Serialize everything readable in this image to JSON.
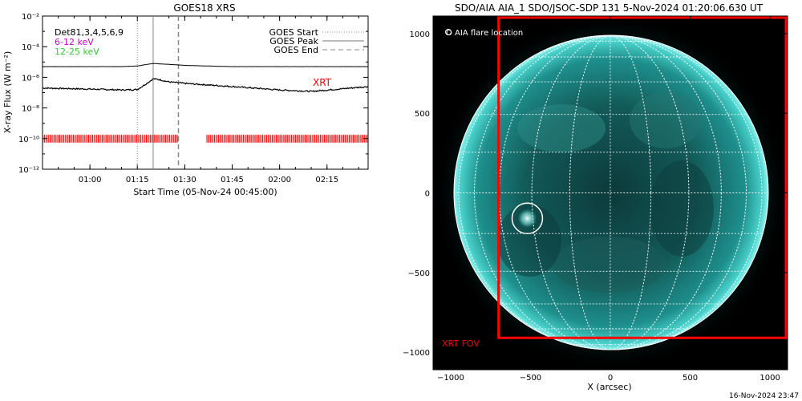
{
  "chart_data": [
    {
      "type": "line",
      "title": "GOES18 XRS",
      "xlabel": "Start Time (05-Nov-24 00:45:00)",
      "ylabel": "X-ray Flux (W m⁻²)",
      "y_scale": "log",
      "x_tick_labels": [
        "01:00",
        "01:15",
        "01:30",
        "01:45",
        "02:00",
        "02:15"
      ],
      "y_tick_labels": [
        "10⁻²",
        "10⁻⁴",
        "10⁻⁶",
        "10⁻⁸",
        "10⁻¹⁰",
        "10⁻¹²"
      ],
      "xlim": [
        "00:45",
        "02:28"
      ],
      "ylim": [
        1e-12,
        0.01
      ],
      "legend_placement": "top-right",
      "legend": [
        "GOES Start",
        "GOES Peak",
        "GOES End"
      ],
      "channel_labels": [
        {
          "text": "Det81,3,4,5,6,9",
          "color": "#000000"
        },
        {
          "text": "6-12 keV",
          "color": "#cc00cc"
        },
        {
          "text": "12-25 keV",
          "color": "#33cc33"
        }
      ],
      "annotation": "XRT",
      "annotation_color": "#ff0000",
      "markers": {
        "goes_start": "01:15",
        "goes_peak": "01:20",
        "goes_end": "01:28"
      },
      "series": [
        {
          "x": [
            "00:45",
            "01:00",
            "01:10",
            "01:15",
            "01:18",
            "01:20",
            "01:25",
            "01:30",
            "01:45",
            "02:00",
            "02:10",
            "02:28"
          ],
          "values": [
            5e-06,
            5e-06,
            5e-06,
            5.5e-06,
            7e-06,
            8e-06,
            7e-06,
            6e-06,
            5e-06,
            5e-06,
            5e-06,
            5e-06
          ]
        },
        {
          "x": [
            "00:45",
            "01:00",
            "01:10",
            "01:15",
            "01:18",
            "01:20",
            "01:22",
            "01:25",
            "01:30",
            "01:45",
            "02:00",
            "02:10",
            "02:20",
            "02:28"
          ],
          "values": [
            2e-07,
            1.7e-07,
            1.5e-07,
            1.6e-07,
            4e-07,
            8e-07,
            7e-07,
            5e-07,
            4e-07,
            2.5e-07,
            1.5e-07,
            1.2e-07,
            1.8e-07,
            2.5e-07
          ]
        }
      ],
      "xrt_coverage": [
        [
          "00:45",
          "01:28"
        ],
        [
          "01:37",
          "02:28"
        ]
      ],
      "xrt_level": 1e-10
    },
    {
      "type": "image",
      "title": "SDO/AIA AIA_1 SDO/JSOC-SDP 131  5-Nov-2024 01:20:06.630 UT",
      "xlabel": "X (arcsec)",
      "x_tick_labels": [
        "−1000",
        "−500",
        "0",
        "500",
        "1000"
      ],
      "y_tick_labels": [
        "1000",
        "500",
        "0",
        "−500",
        "−1000"
      ],
      "xlim": [
        -1110,
        1110
      ],
      "ylim": [
        -1110,
        1110
      ],
      "legend": "O AIA flare location",
      "fov_label": "XRT FOV",
      "fov_arcsec": {
        "x": [
          -700,
          1100
        ],
        "y": [
          -910,
          1100
        ]
      },
      "flare_location_arcsec": {
        "x": -520,
        "y": -160
      },
      "solar_radius_arcsec": 983
    }
  ],
  "footer": {
    "timestamp": "16-Nov-2024 23:47"
  }
}
